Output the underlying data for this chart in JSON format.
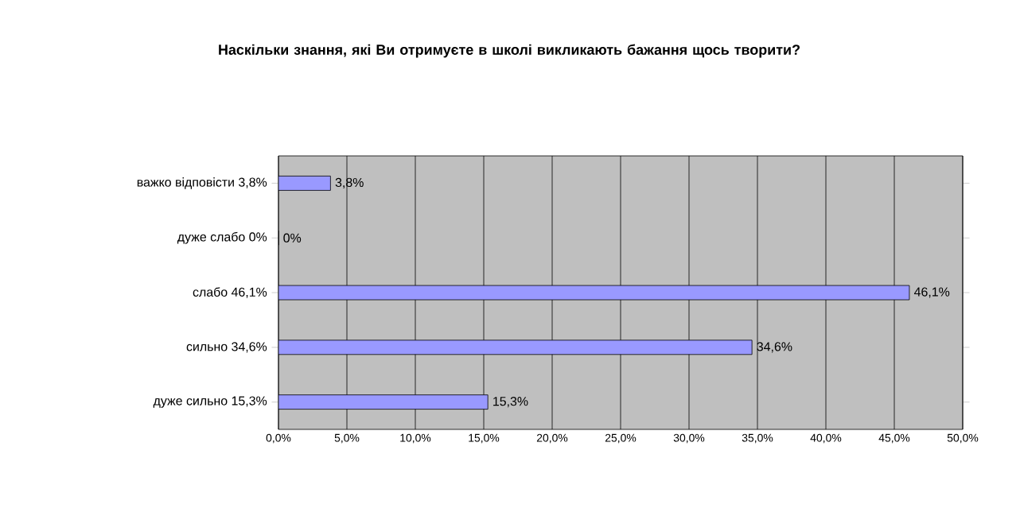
{
  "chart_data": {
    "type": "bar",
    "orientation": "horizontal",
    "title": "Наскільки знання, які Ви отримуєте в школі викликають бажання щось творити?",
    "categories": [
      "важко відповісти 3,8%",
      "дуже слабо 0%",
      "слабо 46,1%",
      "сильно 34,6%",
      "дуже сильно 15,3%"
    ],
    "values": [
      3.8,
      0,
      46.1,
      34.6,
      15.3
    ],
    "value_labels": [
      "3,8%",
      "0%",
      "46,1%",
      "34,6%",
      "15,3%"
    ],
    "color": "#9999ff",
    "xlim": [
      0,
      50
    ],
    "xticks": [
      {
        "value": 0,
        "label": "0,0%"
      },
      {
        "value": 5,
        "label": "5,0%"
      },
      {
        "value": 10,
        "label": "10,0%"
      },
      {
        "value": 15,
        "label": "15,0%"
      },
      {
        "value": 20,
        "label": "20,0%"
      },
      {
        "value": 25,
        "label": "25,0%"
      },
      {
        "value": 30,
        "label": "30,0%"
      },
      {
        "value": 35,
        "label": "35,0%"
      },
      {
        "value": 40,
        "label": "40,0%"
      },
      {
        "value": 45,
        "label": "45,0%"
      },
      {
        "value": 50,
        "label": "50,0%"
      }
    ],
    "grid": "x"
  }
}
